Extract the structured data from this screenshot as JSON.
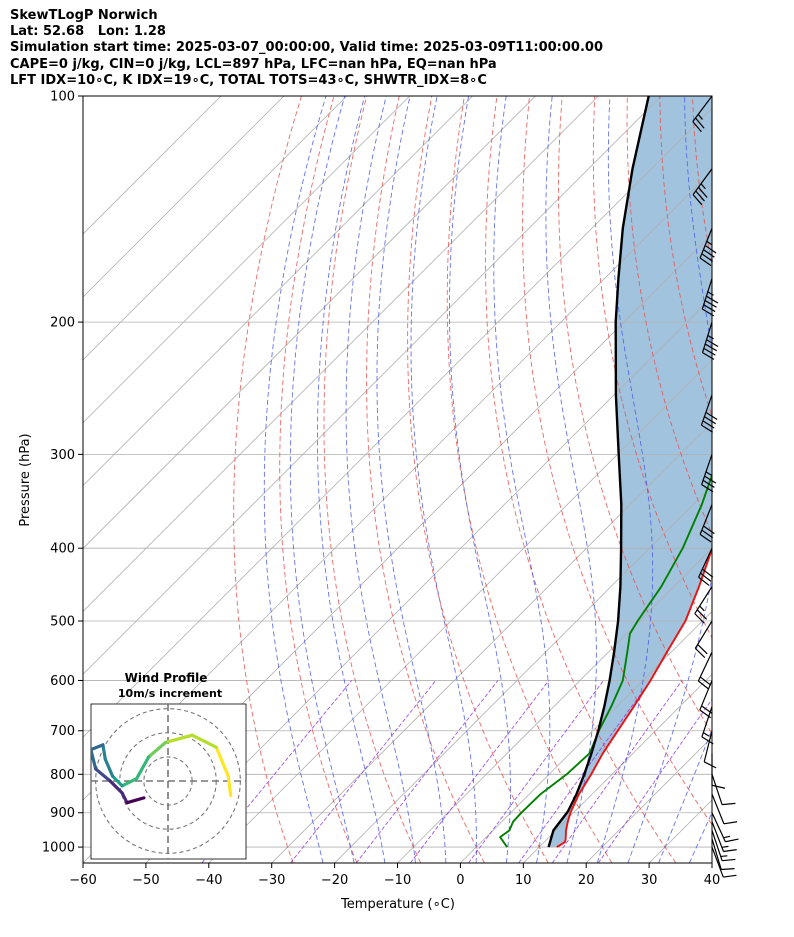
{
  "header": {
    "line1": "SkewTLogP Norwich",
    "line2": "Lat: 52.68   Lon: 1.28",
    "line3": "Simulation start time: 2025-03-07_00:00:00, Valid time: 2025-03-09T11:00:00.00",
    "line4": "CAPE=0 j/kg, CIN=0 j/kg, LCL=897 hPa, LFC=nan hPa, EQ=nan hPa",
    "line5": "LFT IDX=10∘C, K IDX=19∘C, TOTAL TOTS=43∘C, SHWTR_IDX=8∘C"
  },
  "chart_data": {
    "type": "line",
    "xlabel": "Temperature (∘C)",
    "ylabel": "Pressure (hPa)",
    "xlim": [
      -60,
      40
    ],
    "ylim": [
      1050,
      100
    ],
    "y_scale": "log",
    "skew": 45,
    "xticks": [
      -60,
      -50,
      -40,
      -30,
      -20,
      -10,
      0,
      10,
      20,
      30,
      40
    ],
    "yticks": [
      100,
      200,
      300,
      400,
      500,
      600,
      700,
      800,
      900,
      1000
    ],
    "grid": true,
    "series": [
      {
        "role": "temperature",
        "color": "#ee1111",
        "points": [
          [
            1000,
            12.8
          ],
          [
            985,
            13.3
          ],
          [
            975,
            12.9
          ],
          [
            950,
            11.6
          ],
          [
            925,
            10.5
          ],
          [
            900,
            9.5
          ],
          [
            850,
            7.9
          ],
          [
            800,
            6.7
          ],
          [
            750,
            5.2
          ],
          [
            700,
            4.0
          ],
          [
            650,
            2.7
          ],
          [
            600,
            1.2
          ],
          [
            550,
            -0.7
          ],
          [
            500,
            -2.7
          ],
          [
            450,
            -6.0
          ],
          [
            400,
            -10.0
          ],
          [
            350,
            -14.6
          ],
          [
            300,
            -19.6
          ],
          [
            250,
            -25.7
          ],
          [
            215,
            -30.2
          ],
          [
            200,
            -30.9
          ],
          [
            180,
            -32.5
          ],
          [
            160,
            -34.4
          ],
          [
            140,
            -37.0
          ],
          [
            120,
            -39.6
          ],
          [
            110,
            -41.6
          ],
          [
            100,
            -43.0
          ]
        ]
      },
      {
        "role": "dewpoint",
        "color": "#008000",
        "points": [
          [
            1000,
            4.9
          ],
          [
            970,
            2.2
          ],
          [
            950,
            2.6
          ],
          [
            925,
            1.8
          ],
          [
            900,
            1.7
          ],
          [
            850,
            1.8
          ],
          [
            800,
            2.8
          ],
          [
            750,
            3.1
          ],
          [
            700,
            1.0
          ],
          [
            650,
            -0.9
          ],
          [
            600,
            -3.2
          ],
          [
            550,
            -7.0
          ],
          [
            520,
            -9.5
          ],
          [
            500,
            -10.3
          ],
          [
            450,
            -12.0
          ],
          [
            400,
            -14.7
          ],
          [
            350,
            -18.6
          ],
          [
            300,
            -23.8
          ],
          [
            250,
            -30.4
          ],
          [
            220,
            -35.0
          ],
          [
            205,
            -34.6
          ],
          [
            180,
            -36.0
          ],
          [
            165,
            -39.0
          ],
          [
            150,
            -40.0
          ],
          [
            130,
            -44.0
          ],
          [
            110,
            -49.0
          ],
          [
            100,
            -52.0
          ]
        ]
      },
      {
        "role": "parcel",
        "color": "#000000",
        "points": [
          [
            1000,
            11.5
          ],
          [
            950,
            9.6
          ],
          [
            897,
            8.9
          ],
          [
            850,
            7.5
          ],
          [
            800,
            5.6
          ],
          [
            750,
            3.4
          ],
          [
            700,
            0.9
          ],
          [
            650,
            -2.0
          ],
          [
            600,
            -5.3
          ],
          [
            550,
            -9.1
          ],
          [
            500,
            -13.4
          ],
          [
            450,
            -18.5
          ],
          [
            400,
            -24.5
          ],
          [
            350,
            -31.4
          ],
          [
            300,
            -39.8
          ],
          [
            250,
            -49.7
          ],
          [
            200,
            -61.3
          ],
          [
            175,
            -67.8
          ],
          [
            150,
            -75.1
          ],
          [
            125,
            -83.0
          ],
          [
            100,
            -92.0
          ]
        ]
      }
    ],
    "wind_barbs": [
      {
        "p": 1000,
        "u": -3,
        "v": 8
      },
      {
        "p": 975,
        "u": -3,
        "v": 10
      },
      {
        "p": 950,
        "u": -4,
        "v": 12
      },
      {
        "p": 925,
        "u": -5,
        "v": 13
      },
      {
        "p": 900,
        "u": -6,
        "v": 13
      },
      {
        "p": 850,
        "u": -4,
        "v": 10
      },
      {
        "p": 800,
        "u": -3,
        "v": 9
      },
      {
        "p": 750,
        "u": 0,
        "v": 9
      },
      {
        "p": 700,
        "u": 3,
        "v": 12
      },
      {
        "p": 650,
        "u": 5,
        "v": 15
      },
      {
        "p": 600,
        "u": 7,
        "v": 17
      },
      {
        "p": 550,
        "u": 8,
        "v": 17
      },
      {
        "p": 500,
        "u": 11,
        "v": 18
      },
      {
        "p": 450,
        "u": 14,
        "v": 22
      },
      {
        "p": 400,
        "u": 12,
        "v": 26
      },
      {
        "p": 350,
        "u": 12,
        "v": 30
      },
      {
        "p": 300,
        "u": 12,
        "v": 35
      },
      {
        "p": 250,
        "u": 14,
        "v": 40
      },
      {
        "p": 200,
        "u": 14,
        "v": 45
      },
      {
        "p": 175,
        "u": 14,
        "v": 44
      },
      {
        "p": 150,
        "u": 16,
        "v": 40
      },
      {
        "p": 125,
        "u": 22,
        "v": 30
      },
      {
        "p": 100,
        "u": 15,
        "v": 20
      }
    ],
    "hodograph": {
      "title": "Wind Profile",
      "subtitle": "10m/s increment",
      "rings": [
        10,
        20,
        30
      ],
      "range": 18,
      "points": [
        [
          2.6,
          -0.6
        ],
        [
          2.5,
          0.2
        ],
        [
          2.0,
          1.4
        ],
        [
          1.0,
          1.9
        ],
        [
          -0.1,
          1.6
        ],
        [
          -0.8,
          1.0
        ],
        [
          -1.3,
          0.1
        ],
        [
          -1.9,
          -0.2
        ],
        [
          -2.3,
          0.2
        ],
        [
          -2.6,
          0.9
        ],
        [
          -2.7,
          1.5
        ],
        [
          -3.2,
          1.3
        ],
        [
          -3.0,
          0.5
        ],
        [
          -2.4,
          0.0
        ],
        [
          -1.9,
          -0.5
        ],
        [
          -1.7,
          -0.9
        ],
        [
          -1.0,
          -0.7
        ]
      ]
    }
  }
}
